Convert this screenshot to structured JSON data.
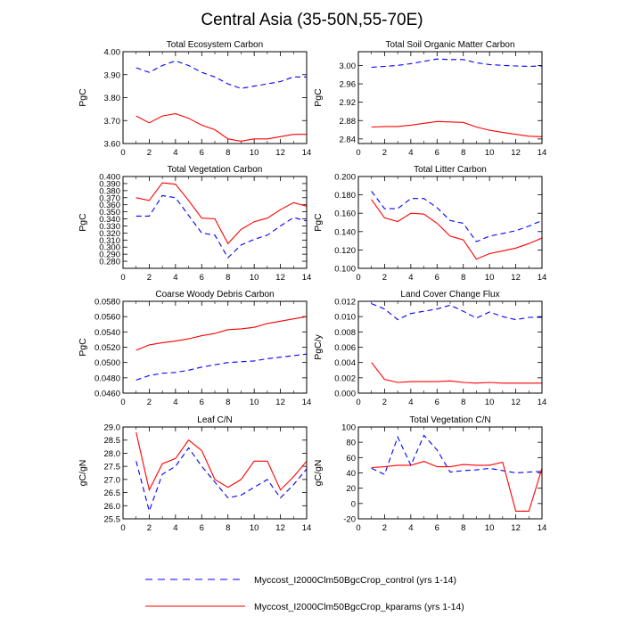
{
  "title": "Central Asia (35-50N,55-70E)",
  "legend": {
    "control_label": "Myccost_I2000Clm50BgcCrop_control (yrs 1-14)",
    "kparams_label": "Myccost_I2000Clm50BgcCrop_kparams (yrs 1-14)"
  },
  "colors": {
    "control": "#0000ff",
    "kparams": "#ff0000",
    "axis": "#000000"
  },
  "chart_data": [
    {
      "type": "line",
      "title": "Total Ecosystem Carbon",
      "ylabel": "PgC",
      "x": [
        1,
        2,
        3,
        4,
        5,
        6,
        7,
        8,
        9,
        10,
        11,
        12,
        13,
        14
      ],
      "xlim": [
        0,
        14
      ],
      "xticks": [
        "0",
        "2",
        "4",
        "6",
        "8",
        "10",
        "12",
        "14"
      ],
      "ylim": [
        3.6,
        4.0
      ],
      "yticks": [
        "4.00",
        "3.90",
        "3.80",
        "3.70",
        "3.60"
      ],
      "series": [
        {
          "name": "Myccost_I2000Clm50BgcCrop_control (yrs 1-14)",
          "style": "dashed",
          "values": [
            3.93,
            3.91,
            3.94,
            3.96,
            3.94,
            3.91,
            3.89,
            3.86,
            3.84,
            3.85,
            3.86,
            3.87,
            3.89,
            3.89
          ]
        },
        {
          "name": "Myccost_I2000Clm50BgcCrop_kparams (yrs 1-14)",
          "style": "solid",
          "values": [
            3.72,
            3.69,
            3.72,
            3.73,
            3.71,
            3.68,
            3.66,
            3.62,
            3.61,
            3.62,
            3.62,
            3.63,
            3.64,
            3.64
          ]
        }
      ]
    },
    {
      "type": "line",
      "title": "Total Soil Organic Matter Carbon",
      "ylabel": "PgC",
      "x": [
        1,
        2,
        3,
        4,
        5,
        6,
        7,
        8,
        9,
        10,
        11,
        12,
        13,
        14
      ],
      "xlim": [
        0,
        14
      ],
      "xticks": [
        "0",
        "2",
        "4",
        "6",
        "8",
        "10",
        "12",
        "14"
      ],
      "ylim": [
        2.83,
        3.03
      ],
      "yticks": [
        "3.00",
        "2.96",
        "2.92",
        "2.88",
        "2.84"
      ],
      "series": [
        {
          "name": "Myccost_I2000Clm50BgcCrop_control (yrs 1-14)",
          "style": "dashed",
          "values": [
            2.996,
            2.998,
            3.0,
            3.004,
            3.009,
            3.014,
            3.013,
            3.013,
            3.006,
            3.002,
            3.0,
            2.999,
            2.998,
            2.999
          ]
        },
        {
          "name": "Myccost_I2000Clm50BgcCrop_kparams (yrs 1-14)",
          "style": "solid",
          "values": [
            2.866,
            2.867,
            2.867,
            2.87,
            2.874,
            2.878,
            2.877,
            2.876,
            2.866,
            2.859,
            2.854,
            2.85,
            2.846,
            2.845
          ]
        }
      ]
    },
    {
      "type": "line",
      "title": "Total Vegetation Carbon",
      "ylabel": "PgC",
      "x": [
        1,
        2,
        3,
        4,
        5,
        6,
        7,
        8,
        9,
        10,
        11,
        12,
        13,
        14
      ],
      "xlim": [
        0,
        14
      ],
      "xticks": [
        "0",
        "2",
        "4",
        "6",
        "8",
        "10",
        "12",
        "14"
      ],
      "ylim": [
        0.27,
        0.4
      ],
      "yticks": [
        "0.400",
        "0.390",
        "0.380",
        "0.370",
        "0.360",
        "0.350",
        "0.340",
        "0.330",
        "0.320",
        "0.310",
        "0.300",
        "0.290",
        "0.280"
      ],
      "series": [
        {
          "name": "Myccost_I2000Clm50BgcCrop_control (yrs 1-14)",
          "style": "dashed",
          "values": [
            0.344,
            0.344,
            0.373,
            0.37,
            0.345,
            0.32,
            0.317,
            0.285,
            0.303,
            0.311,
            0.317,
            0.33,
            0.342,
            0.337
          ]
        },
        {
          "name": "Myccost_I2000Clm50BgcCrop_kparams (yrs 1-14)",
          "style": "solid",
          "values": [
            0.37,
            0.366,
            0.391,
            0.389,
            0.366,
            0.341,
            0.34,
            0.305,
            0.325,
            0.336,
            0.341,
            0.353,
            0.363,
            0.358
          ]
        }
      ]
    },
    {
      "type": "line",
      "title": "Total Litter Carbon",
      "ylabel": "PgC",
      "x": [
        1,
        2,
        3,
        4,
        5,
        6,
        7,
        8,
        9,
        10,
        11,
        12,
        13,
        14
      ],
      "xlim": [
        0,
        14
      ],
      "xticks": [
        "0",
        "2",
        "4",
        "6",
        "8",
        "10",
        "12",
        "14"
      ],
      "ylim": [
        0.1,
        0.2
      ],
      "yticks": [
        "0.200",
        "0.180",
        "0.160",
        "0.140",
        "0.120",
        "0.100"
      ],
      "series": [
        {
          "name": "Myccost_I2000Clm50BgcCrop_control (yrs 1-14)",
          "style": "dashed",
          "values": [
            0.184,
            0.165,
            0.165,
            0.176,
            0.176,
            0.166,
            0.152,
            0.149,
            0.129,
            0.135,
            0.138,
            0.141,
            0.146,
            0.152
          ]
        },
        {
          "name": "Myccost_I2000Clm50BgcCrop_kparams (yrs 1-14)",
          "style": "solid",
          "values": [
            0.175,
            0.155,
            0.151,
            0.16,
            0.159,
            0.149,
            0.135,
            0.131,
            0.11,
            0.116,
            0.119,
            0.122,
            0.127,
            0.133
          ]
        }
      ]
    },
    {
      "type": "line",
      "title": "Coarse Woody Debris Carbon",
      "ylabel": "PgC",
      "x": [
        1,
        2,
        3,
        4,
        5,
        6,
        7,
        8,
        9,
        10,
        11,
        12,
        13,
        14
      ],
      "xlim": [
        0,
        14
      ],
      "xticks": [
        "0",
        "2",
        "4",
        "6",
        "8",
        "10",
        "12",
        "14"
      ],
      "ylim": [
        0.046,
        0.058
      ],
      "yticks": [
        "0.0580",
        "0.0560",
        "0.0540",
        "0.0520",
        "0.0500",
        "0.0480",
        "0.0460"
      ],
      "series": [
        {
          "name": "Myccost_I2000Clm50BgcCrop_control (yrs 1-14)",
          "style": "dashed",
          "values": [
            0.0477,
            0.0483,
            0.0486,
            0.0487,
            0.049,
            0.0494,
            0.0497,
            0.05,
            0.0501,
            0.0502,
            0.0505,
            0.0507,
            0.0509,
            0.0511
          ]
        },
        {
          "name": "Myccost_I2000Clm50BgcCrop_kparams (yrs 1-14)",
          "style": "solid",
          "values": [
            0.0516,
            0.0523,
            0.0526,
            0.0528,
            0.0531,
            0.0535,
            0.0538,
            0.0543,
            0.0544,
            0.0546,
            0.0551,
            0.0554,
            0.0557,
            0.056
          ]
        }
      ]
    },
    {
      "type": "line",
      "title": "Land Cover Change Flux",
      "ylabel": "PgC/y",
      "x": [
        1,
        2,
        3,
        4,
        5,
        6,
        7,
        8,
        9,
        10,
        11,
        12,
        13,
        14
      ],
      "xlim": [
        0,
        14
      ],
      "xticks": [
        "0",
        "2",
        "4",
        "6",
        "8",
        "10",
        "12",
        "14"
      ],
      "ylim": [
        0.0,
        0.012
      ],
      "yticks": [
        "0.012",
        "0.010",
        "0.008",
        "0.006",
        "0.004",
        "0.002",
        "0.000"
      ],
      "series": [
        {
          "name": "Myccost_I2000Clm50BgcCrop_control (yrs 1-14)",
          "style": "dashed",
          "values": [
            0.0117,
            0.011,
            0.0096,
            0.0104,
            0.0107,
            0.011,
            0.0115,
            0.0107,
            0.0098,
            0.0106,
            0.01,
            0.0096,
            0.0099,
            0.0099
          ]
        },
        {
          "name": "Myccost_I2000Clm50BgcCrop_kparams (yrs 1-14)",
          "style": "solid",
          "values": [
            0.004,
            0.0018,
            0.0014,
            0.0015,
            0.0015,
            0.0015,
            0.0016,
            0.0014,
            0.0013,
            0.0014,
            0.0013,
            0.0013,
            0.0013,
            0.0013
          ]
        }
      ]
    },
    {
      "type": "line",
      "title": "Leaf C/N",
      "ylabel": "gC/gN",
      "x": [
        1,
        2,
        3,
        4,
        5,
        6,
        7,
        8,
        9,
        10,
        11,
        12,
        13,
        14
      ],
      "xlim": [
        0,
        14
      ],
      "xticks": [
        "0",
        "2",
        "4",
        "6",
        "8",
        "10",
        "12",
        "14"
      ],
      "ylim": [
        25.5,
        29.0
      ],
      "yticks": [
        "29.0",
        "28.5",
        "28.0",
        "27.5",
        "27.0",
        "26.5",
        "26.0",
        "25.5"
      ],
      "series": [
        {
          "name": "Myccost_I2000Clm50BgcCrop_control (yrs 1-14)",
          "style": "dashed",
          "values": [
            27.7,
            25.8,
            27.2,
            27.5,
            28.2,
            27.5,
            26.9,
            26.3,
            26.4,
            26.7,
            27.0,
            26.3,
            26.8,
            27.4
          ]
        },
        {
          "name": "Myccost_I2000Clm50BgcCrop_kparams (yrs 1-14)",
          "style": "solid",
          "values": [
            28.8,
            26.6,
            27.6,
            27.8,
            28.5,
            28.1,
            27.0,
            26.7,
            27.0,
            27.7,
            27.7,
            26.6,
            27.1,
            27.7
          ]
        }
      ]
    },
    {
      "type": "line",
      "title": "Total Vegetation C/N",
      "ylabel": "gC/gN",
      "x": [
        1,
        2,
        3,
        4,
        5,
        6,
        7,
        8,
        9,
        10,
        11,
        12,
        13,
        14
      ],
      "xlim": [
        0,
        14
      ],
      "xticks": [
        "0",
        "2",
        "4",
        "6",
        "8",
        "10",
        "12",
        "14"
      ],
      "ylim": [
        -20,
        100
      ],
      "yticks": [
        "100",
        "80",
        "60",
        "40",
        "20",
        "0",
        "-20"
      ],
      "series": [
        {
          "name": "Myccost_I2000Clm50BgcCrop_control (yrs 1-14)",
          "style": "dashed",
          "values": [
            46,
            38,
            87,
            50,
            89,
            70,
            41,
            43,
            44,
            46,
            43,
            40,
            41,
            42
          ]
        },
        {
          "name": "Myccost_I2000Clm50BgcCrop_kparams (yrs 1-14)",
          "style": "solid",
          "values": [
            47,
            48,
            50,
            50,
            55,
            48,
            48,
            51,
            50,
            50,
            54,
            -10,
            -10,
            46
          ]
        }
      ]
    }
  ]
}
